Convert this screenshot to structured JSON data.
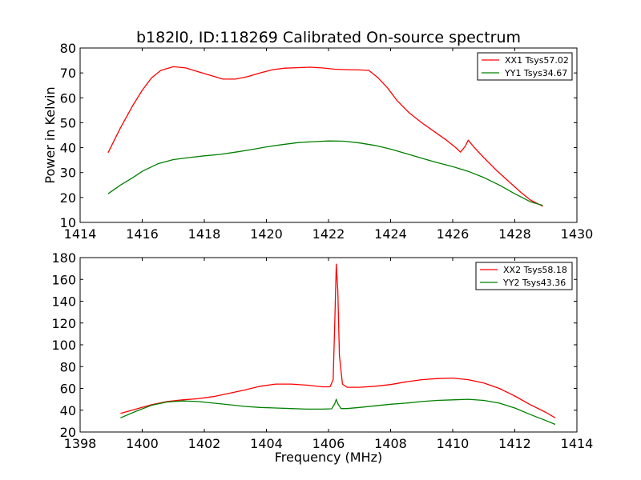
{
  "colors": {
    "red": "#ff0000",
    "green": "#008000",
    "frame": "#000000"
  },
  "chart_data": [
    {
      "type": "line",
      "title": "b182l0, ID:118269 Calibrated On-source spectrum",
      "xlabel": "",
      "ylabel": "Power in Kelvin",
      "xlim": [
        1414,
        1430
      ],
      "ylim": [
        10,
        80
      ],
      "xticks": [
        "1414",
        "1416",
        "1418",
        "1420",
        "1422",
        "1424",
        "1426",
        "1428",
        "1430"
      ],
      "yticks": [
        "10",
        "20",
        "30",
        "40",
        "50",
        "60",
        "70",
        "80"
      ],
      "legend_position": "top-right",
      "series": [
        {
          "name": "XX1 Tsys57.02",
          "color": "#ff0000",
          "x": [
            1414.9,
            1415.3,
            1415.7,
            1416.0,
            1416.3,
            1416.6,
            1417.0,
            1417.4,
            1417.8,
            1418.2,
            1418.6,
            1419.0,
            1419.4,
            1419.8,
            1420.2,
            1420.6,
            1421.0,
            1421.4,
            1421.8,
            1422.2,
            1422.6,
            1423.0,
            1423.3,
            1423.6,
            1423.9,
            1424.2,
            1424.6,
            1425.0,
            1425.4,
            1425.8,
            1426.1,
            1426.25,
            1426.4,
            1426.5,
            1426.7,
            1427.0,
            1427.4,
            1427.8,
            1428.2,
            1428.5,
            1428.9
          ],
          "y": [
            38,
            48,
            57,
            63,
            68,
            71,
            72.5,
            72,
            70.5,
            69,
            67.5,
            67.5,
            68.5,
            70,
            71.3,
            71.9,
            72.1,
            72.3,
            72,
            71.5,
            71.3,
            71.2,
            71,
            68,
            64,
            59,
            54,
            50,
            46.5,
            43,
            40,
            38.2,
            40.5,
            43,
            40,
            36,
            31,
            26.5,
            22,
            19,
            16.5
          ]
        },
        {
          "name": "YY1 Tsys34.67",
          "color": "#008000",
          "x": [
            1414.9,
            1415.3,
            1415.7,
            1416.0,
            1416.5,
            1417.0,
            1417.5,
            1418.0,
            1418.5,
            1419.0,
            1419.5,
            1420.0,
            1420.5,
            1421.0,
            1421.5,
            1422.0,
            1422.5,
            1423.0,
            1423.5,
            1424.0,
            1424.5,
            1425.0,
            1425.5,
            1426.0,
            1426.5,
            1427.0,
            1427.5,
            1428.0,
            1428.5,
            1428.9
          ],
          "y": [
            21.5,
            25,
            28,
            30.5,
            33.5,
            35.2,
            36,
            36.7,
            37.3,
            38.2,
            39.2,
            40.3,
            41.2,
            42,
            42.4,
            42.7,
            42.6,
            41.9,
            40.9,
            39.4,
            37.6,
            35.8,
            34,
            32.4,
            30.5,
            28,
            25,
            21.5,
            18.3,
            16.8
          ]
        }
      ]
    },
    {
      "type": "line",
      "title": "",
      "xlabel": "Frequency (MHz)",
      "ylabel": "",
      "xlim": [
        1398,
        1414
      ],
      "ylim": [
        20,
        180
      ],
      "xticks": [
        "1398",
        "1400",
        "1402",
        "1404",
        "1406",
        "1408",
        "1410",
        "1412",
        "1414"
      ],
      "yticks": [
        "20",
        "40",
        "60",
        "80",
        "100",
        "120",
        "140",
        "160",
        "180"
      ],
      "legend_position": "top-right",
      "series": [
        {
          "name": "XX2 Tsys58.18",
          "color": "#ff0000",
          "x": [
            1399.3,
            1399.8,
            1400.3,
            1400.8,
            1401.3,
            1401.8,
            1402.3,
            1402.8,
            1403.3,
            1403.8,
            1404.3,
            1404.8,
            1405.3,
            1405.8,
            1406.05,
            1406.15,
            1406.2,
            1406.25,
            1406.3,
            1406.35,
            1406.45,
            1406.6,
            1407.0,
            1407.5,
            1408.0,
            1408.5,
            1409.0,
            1409.5,
            1410.0,
            1410.5,
            1411.0,
            1411.5,
            1412.0,
            1412.5,
            1413.0,
            1413.3
          ],
          "y": [
            37,
            41,
            45,
            48,
            49.5,
            50.5,
            52.5,
            55.5,
            58.5,
            62,
            64,
            64,
            63,
            61.5,
            61.5,
            68,
            120,
            174,
            150,
            90,
            64,
            61,
            61,
            62,
            63.5,
            66,
            68,
            69,
            69.5,
            68,
            65,
            60,
            53,
            45,
            38,
            33
          ]
        },
        {
          "name": "YY2 Tsys43.36",
          "color": "#008000",
          "x": [
            1399.3,
            1399.8,
            1400.3,
            1400.8,
            1401.3,
            1401.8,
            1402.3,
            1402.8,
            1403.3,
            1403.8,
            1404.3,
            1404.8,
            1405.3,
            1405.8,
            1406.1,
            1406.2,
            1406.25,
            1406.3,
            1406.4,
            1406.6,
            1407.0,
            1407.5,
            1408.0,
            1408.5,
            1409.0,
            1409.5,
            1410.0,
            1410.5,
            1411.0,
            1411.5,
            1412.0,
            1412.5,
            1413.0,
            1413.3
          ],
          "y": [
            33,
            39,
            44.5,
            47.5,
            48.5,
            48,
            46.5,
            45,
            43.5,
            42.5,
            42,
            41.5,
            41,
            41,
            41.3,
            46,
            50,
            46,
            41.5,
            41.5,
            42.5,
            44,
            45.5,
            46.5,
            48,
            49,
            49.5,
            50,
            49,
            46.5,
            42,
            36,
            30.5,
            27
          ]
        }
      ]
    }
  ]
}
